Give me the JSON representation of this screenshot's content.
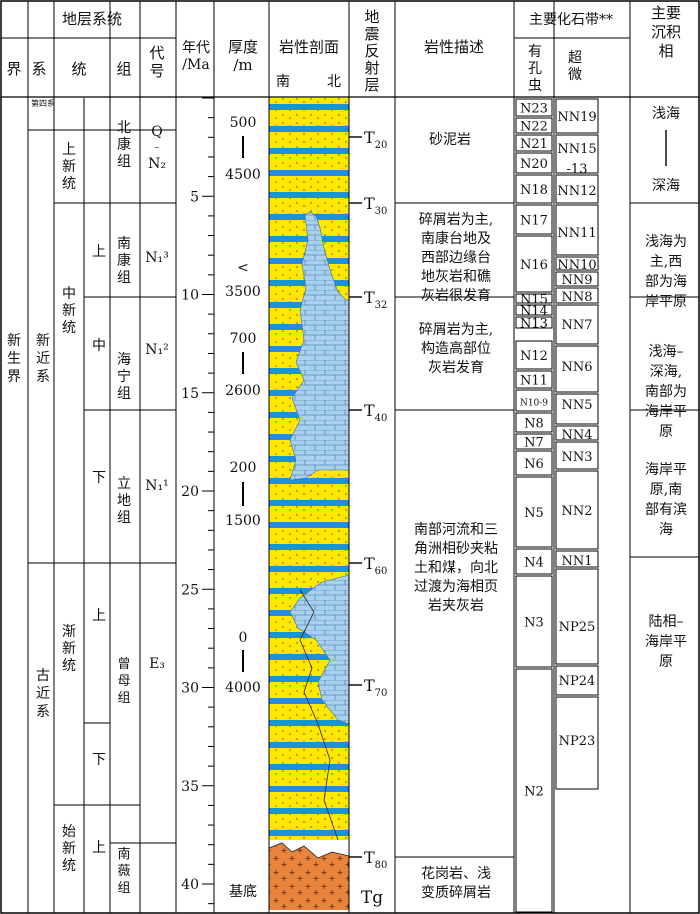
{
  "header": {
    "strat_system": "地层系统",
    "jie": "界",
    "xi": "系",
    "tong": "统",
    "zu": "组",
    "daihao": "代号",
    "age": "年代/Ma",
    "thickness": "厚度/m",
    "section": "岩性剖面",
    "south": "南",
    "north": "北",
    "seismic": "地震反射层",
    "lith_desc": "岩性描述",
    "fossil": "主要化石带**",
    "foram": "有孔虫",
    "nanno": "超微",
    "facies": "主要沉积相"
  },
  "eras": {
    "xinsheng": "新生界"
  },
  "systems": {
    "quaternary": "第四系",
    "neogene": "新近系",
    "paleogene": "古近系"
  },
  "series": {
    "pliocene": "上新统",
    "miocene": "中新统",
    "oligocene": "渐新统",
    "eocene": "始新统",
    "upper": "上",
    "middle": "中",
    "lower": "下"
  },
  "formations": {
    "beikang": "北康组",
    "nankang": "南康组",
    "haining": "海宁组",
    "lidi": "立地组",
    "zengmu": "曾母组",
    "nanwei": "南薇组"
  },
  "codes": {
    "q": "Q",
    "dash": "–",
    "n2": "N₂",
    "n13": "N₁³",
    "n12": "N₁²",
    "n11": "N₁¹",
    "e3": "E₃"
  },
  "age_ticks": [
    "5",
    "10",
    "15",
    "20",
    "25",
    "30",
    "35",
    "40"
  ],
  "thickness": {
    "t1a": "500",
    "t1b": "4500",
    "t2": "<",
    "t2b": "3500",
    "t3a": "700",
    "t3b": "2600",
    "t4a": "200",
    "t4b": "1500",
    "t5a": "0",
    "t5b": "4000",
    "basement": "基底"
  },
  "seismic": {
    "T20": "T",
    "T20s": "20",
    "T30": "T",
    "T30s": "30",
    "T32": "T",
    "T32s": "32",
    "T40": "T",
    "T40s": "40",
    "T60": "T",
    "T60s": "60",
    "T70": "T",
    "T70s": "70",
    "T80": "T",
    "T80s": "80",
    "Tg": "Tg"
  },
  "lithology": {
    "d1": "砂泥岩",
    "d2": [
      "碎屑岩为主,",
      "南康台地及",
      "西部边缘台",
      "地灰岩和礁",
      "灰岩很发育"
    ],
    "d3": [
      "碎屑岩为主,",
      "构造高部位",
      "灰岩发育"
    ],
    "d4": [
      "南部河流和三",
      "角洲相砂夹粘",
      "土和煤，向北",
      "过渡为海相页",
      "岩夹灰岩"
    ],
    "d5": [
      "花岗岩、浅",
      "变质碎屑岩"
    ]
  },
  "foram_zones": [
    "N23",
    "N22",
    "N21",
    "N20",
    "N18",
    "N17",
    "N16",
    "N15",
    "N14",
    "N13",
    "N12",
    "N11",
    "N10-9",
    "N8",
    "N7",
    "N6",
    "N5",
    "N4",
    "N3",
    "N2"
  ],
  "nanno_zones": [
    "NN19",
    "NN15",
    "-13",
    "NN12",
    "NN11",
    "NN10",
    "NN9",
    "NN8",
    "NN7",
    "NN6",
    "NN5",
    "NN4",
    "NN3",
    "NN2",
    "NN1",
    "NP25",
    "NP24",
    "NP23"
  ],
  "facies": {
    "f1a": "浅海",
    "f1b": "深海",
    "f2": [
      "浅海为",
      "主,西",
      "部为海",
      "岸平原"
    ],
    "f3": [
      "浅海–",
      "深海,",
      "南部为",
      "海岸平",
      "原"
    ],
    "f4": [
      "海岸平",
      "原,南",
      "部有滨",
      "海"
    ],
    "f5": [
      "陆相–",
      "海岸平",
      "原"
    ]
  }
}
